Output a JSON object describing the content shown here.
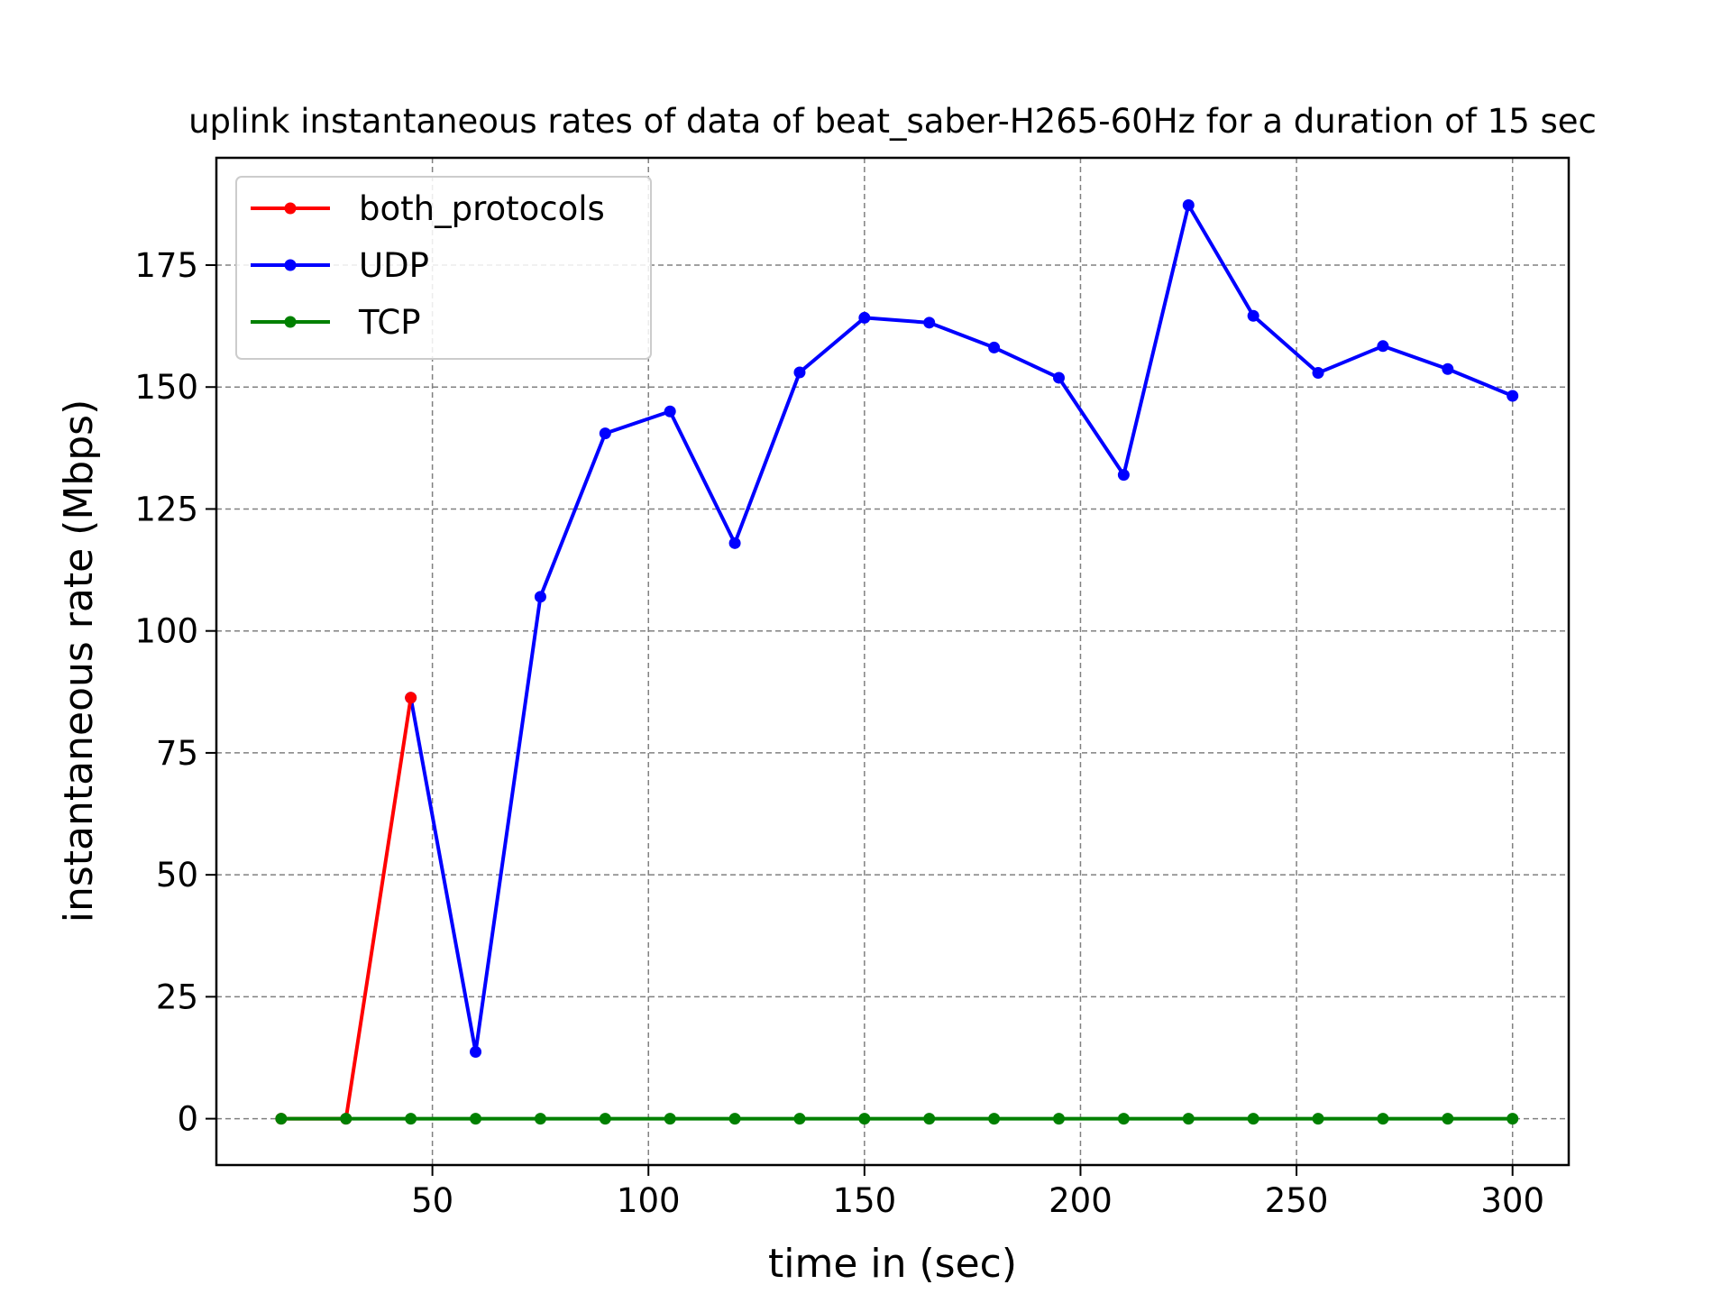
{
  "chart_data": {
    "type": "line",
    "title": "uplink instantaneous rates of data of beat_saber-H265-60Hz for a duration of 15 sec",
    "xlabel": "time in (sec)",
    "ylabel": "instantaneous rate (Mbps)",
    "xlim": [
      0,
      313
    ],
    "ylim": [
      -9.5,
      197
    ],
    "xticks": [
      50,
      100,
      150,
      200,
      250,
      300
    ],
    "yticks": [
      0,
      25,
      50,
      75,
      100,
      125,
      150,
      175
    ],
    "grid": true,
    "legend_position": "top-left",
    "series": [
      {
        "name": "both_protocols",
        "color": "#ff0000",
        "x": [
          15,
          30,
          45
        ],
        "values": [
          0,
          0,
          86.3
        ]
      },
      {
        "name": "UDP",
        "color": "#0000ff",
        "x": [
          45,
          60,
          75,
          90,
          105,
          120,
          135,
          150,
          165,
          180,
          195,
          210,
          225,
          240,
          255,
          270,
          285,
          300
        ],
        "values": [
          86.3,
          13.7,
          107,
          140.5,
          145,
          118,
          153,
          164.2,
          163.2,
          158.1,
          151.9,
          132,
          187.3,
          164.6,
          152.9,
          158.4,
          153.7,
          148.2
        ]
      },
      {
        "name": "TCP",
        "color": "#008000",
        "x": [
          15,
          30,
          45,
          60,
          75,
          90,
          105,
          120,
          135,
          150,
          165,
          180,
          195,
          210,
          225,
          240,
          255,
          270,
          285,
          300
        ],
        "values": [
          0,
          0,
          0,
          0,
          0,
          0,
          0,
          0,
          0,
          0,
          0,
          0,
          0,
          0,
          0,
          0,
          0,
          0,
          0,
          0
        ]
      }
    ]
  }
}
